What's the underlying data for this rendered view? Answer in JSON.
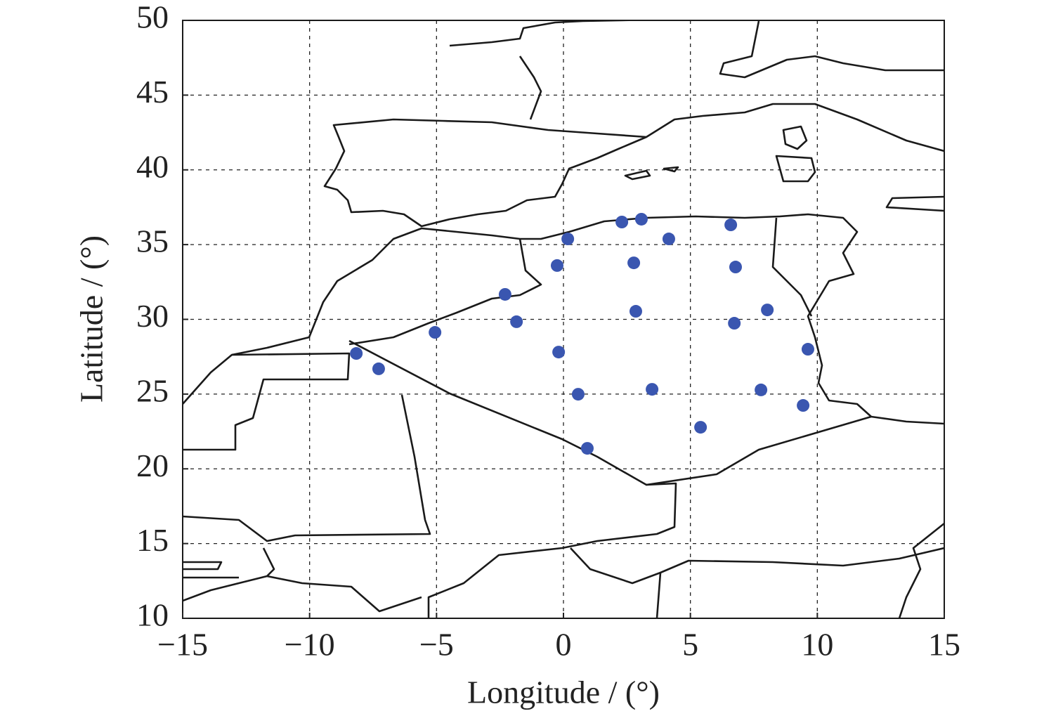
{
  "chart_data": {
    "type": "scatter",
    "xlabel": "Longitude / (°)",
    "ylabel": "Latitude / (°)",
    "color": "#3a56b0",
    "grid": true,
    "xlim": [
      -15,
      15
    ],
    "ylim": [
      10,
      50
    ],
    "xticks": [
      {
        "value": -15,
        "label": "−15"
      },
      {
        "value": -10,
        "label": "−10"
      },
      {
        "value": -5,
        "label": "−5"
      },
      0,
      5,
      10,
      15
    ],
    "yticks": [
      10,
      15,
      20,
      25,
      30,
      35,
      40,
      45,
      50
    ],
    "x": [
      -8.16,
      -7.28,
      -5.06,
      -2.3,
      -1.85,
      0.17,
      -0.25,
      -0.19,
      0.58,
      0.94,
      2.3,
      3.07,
      2.77,
      2.85,
      3.49,
      4.15,
      5.4,
      6.59,
      6.78,
      6.73,
      7.78,
      8.03,
      9.44,
      9.63
    ],
    "y": [
      27.72,
      26.69,
      29.13,
      31.67,
      29.84,
      35.38,
      33.6,
      27.81,
      24.99,
      21.37,
      36.51,
      36.7,
      33.78,
      30.54,
      25.32,
      35.38,
      22.78,
      36.32,
      33.5,
      29.74,
      25.28,
      30.63,
      24.24,
      28.0
    ]
  }
}
